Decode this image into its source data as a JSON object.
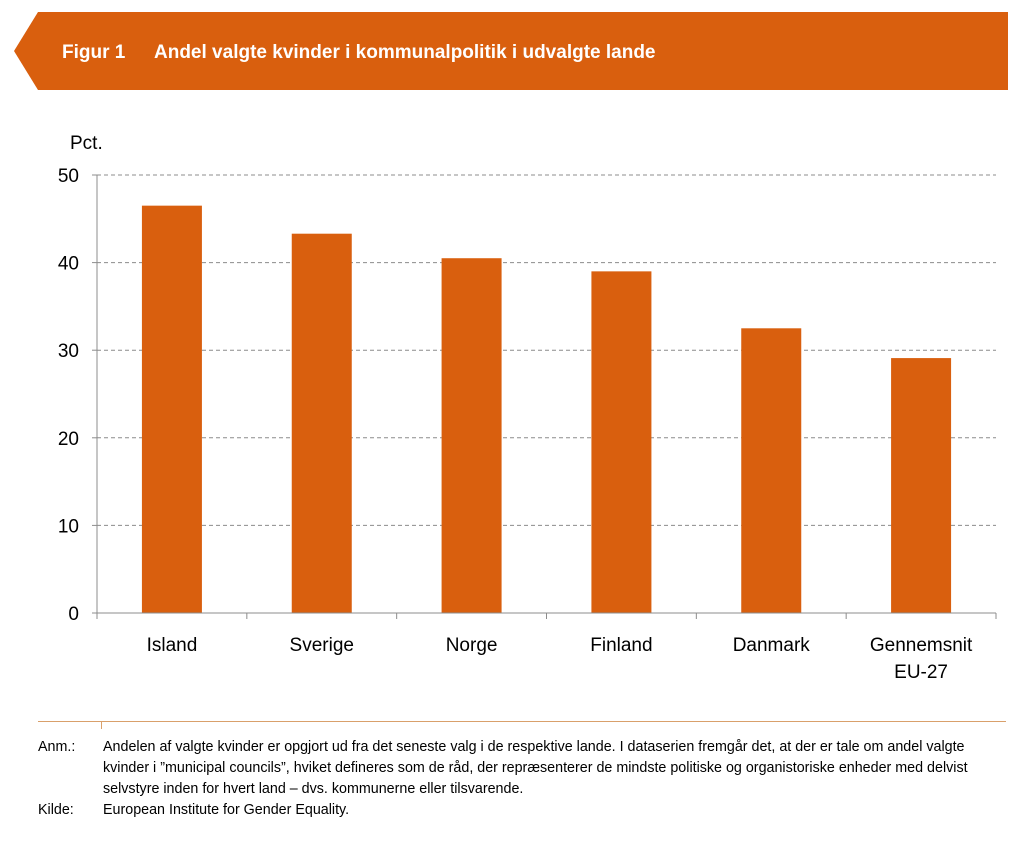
{
  "header": {
    "figure_label": "Figur 1",
    "title": "Andel valgte kvinder i kommunalpolitik i udvalgte lande",
    "color": "#d95f0e"
  },
  "chart_data": {
    "type": "bar",
    "ylabel": "Pct.",
    "categories": [
      "Island",
      "Sverige",
      "Norge",
      "Finland",
      "Danmark",
      "Gennemsnit EU-27"
    ],
    "category_lines": [
      [
        "Island"
      ],
      [
        "Sverige"
      ],
      [
        "Norge"
      ],
      [
        "Finland"
      ],
      [
        "Danmark"
      ],
      [
        "Gennemsnit",
        "EU-27"
      ]
    ],
    "values": [
      46.5,
      43.3,
      40.5,
      39.0,
      32.5,
      29.1
    ],
    "ylim": [
      0,
      50
    ],
    "yticks": [
      0,
      10,
      20,
      30,
      40,
      50
    ],
    "grid": true,
    "bar_color": "#d95f0e"
  },
  "notes": [
    {
      "label": "Anm.:",
      "text": "Andelen af valgte kvinder er opgjort ud fra det seneste valg i de respektive lande. I dataserien fremgår det, at der er tale om andel valgte kvinder i ”municipal councils”, hviket defineres som de råd, der repræsenterer de mindste politiske og organistoriske enheder med delvist selvstyre inden for hvert land – dvs. kommunerne eller tilsvarende."
    },
    {
      "label": "Kilde:",
      "text": "European Institute for Gender Equality."
    }
  ]
}
